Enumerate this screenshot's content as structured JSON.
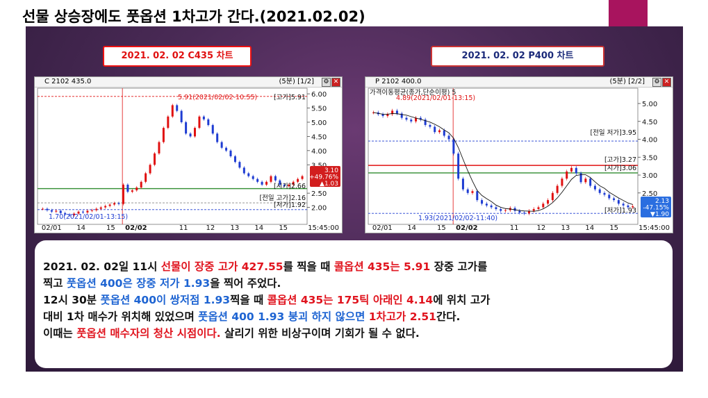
{
  "title": "선물 상승장에도 풋옵션 1차고가 간다.(2021.02.02)",
  "tags": {
    "left": "2021. 02. 02  C435 차트",
    "right": "2021. 02. 02  P400 차트"
  },
  "colors": {
    "accent": "#a8145e",
    "up": "#e01010",
    "down": "#1e3cd2",
    "support": "#2e8b2e"
  },
  "chart_data": [
    {
      "type": "line",
      "header": {
        "name": "C 2102 435.0",
        "timeframe": "(5분)",
        "page": "[1/2]"
      },
      "x_ticks": [
        "02/01",
        "14",
        "15",
        "02/02",
        "11",
        "12",
        "13",
        "14",
        "15",
        "15:45:00"
      ],
      "y_ticks": [
        "6.00",
        "5.50",
        "5.00",
        "4.50",
        "4.00",
        "3.50",
        "2.50",
        "2.00"
      ],
      "ylim": [
        1.5,
        6.1
      ],
      "annotations": {
        "high": "5.91(2021/02/02-10:55)",
        "high_label": "[고가]5.91",
        "low": "1.70(2021/02/01-13:15)",
        "prev_high": "[전일 고가]2.16",
        "low_label": "[저가]1.92",
        "open": "[시가]2.66",
        "last_price": "3.10",
        "change_pct": "+49.76%",
        "change": "▲1.03"
      },
      "levels": {
        "high": 5.91,
        "prev_high": 2.16,
        "low": 1.92,
        "open": 2.66
      },
      "series": [
        {
          "values": [
            1.95,
            1.9,
            1.85,
            1.88,
            1.8,
            1.75,
            1.72,
            1.78,
            1.85,
            1.82,
            1.88,
            1.9,
            1.95,
            2.0,
            2.05,
            2.1,
            2.15,
            2.12,
            2.8,
            2.55,
            2.6,
            2.7,
            2.9,
            3.2,
            3.5,
            3.9,
            4.3,
            4.8,
            5.2,
            5.6,
            5.4,
            5.0,
            4.6,
            4.5,
            4.8,
            5.2,
            5.1,
            4.9,
            4.6,
            4.3,
            4.1,
            4.0,
            3.8,
            3.6,
            3.4,
            3.2,
            3.1,
            3.0,
            2.9,
            2.8,
            2.9,
            3.1,
            2.95,
            2.8,
            2.75,
            2.8,
            2.9,
            3.0,
            3.1
          ]
        }
      ]
    },
    {
      "type": "line",
      "header": {
        "name": "P 2102 400.0",
        "timeframe": "(5분)",
        "page": "[2/2]"
      },
      "legend": "가격이동평균(종가,단순이평) 5",
      "x_ticks": [
        "02/01",
        "14",
        "15",
        "02/02",
        "11",
        "12",
        "13",
        "14",
        "15",
        "15:45:00"
      ],
      "y_ticks": [
        "5.00",
        "4.50",
        "4.00",
        "3.50",
        "3.00",
        "2.50"
      ],
      "ylim": [
        1.7,
        5.35
      ],
      "annotations": {
        "high": "4.89(2021/02/01-13:15)",
        "prev_low": "[전일 저가]3.95",
        "high_label": "[고가]3.27",
        "open": "[시가]3.06",
        "low_label": "[저가]1.93",
        "low": "1.93(2021/02/02-11:40)",
        "last_price": "2.13",
        "change_pct": "-47.15%",
        "change": "▼1.90"
      },
      "levels": {
        "prev_low": 3.95,
        "high": 3.27,
        "open": 3.06,
        "low": 1.93
      },
      "series": [
        {
          "values": [
            4.75,
            4.7,
            4.65,
            4.7,
            4.8,
            4.72,
            4.6,
            4.55,
            4.5,
            4.6,
            4.55,
            4.4,
            4.35,
            4.2,
            4.25,
            4.1,
            4.0,
            3.6,
            2.9,
            2.6,
            2.5,
            2.55,
            2.3,
            2.2,
            2.15,
            2.1,
            2.05,
            2.0,
            2.02,
            2.08,
            2.0,
            1.95,
            1.93,
            2.0,
            2.05,
            2.1,
            2.2,
            2.3,
            2.5,
            2.7,
            2.9,
            3.1,
            3.2,
            3.05,
            2.8,
            2.9,
            2.7,
            2.6,
            2.5,
            2.45,
            2.35,
            2.3,
            2.2,
            2.15,
            2.1,
            2.13
          ]
        }
      ]
    }
  ],
  "note": {
    "lines": [
      [
        {
          "t": "2021. 02. 02일 11시 ",
          "c": "k"
        },
        {
          "t": "선물이 장중 고가 427.55",
          "c": "r"
        },
        {
          "t": "를 찍을 때 ",
          "c": "k"
        },
        {
          "t": "콜옵션 435는 5.91",
          "c": "r"
        },
        {
          "t": " 장중 고가를",
          "c": "k"
        }
      ],
      [
        {
          "t": "찍고 ",
          "c": "k"
        },
        {
          "t": "풋옵션 400은 장중 저가 1.93",
          "c": "b"
        },
        {
          "t": "을 찍어 주었다.",
          "c": "k"
        }
      ],
      [
        {
          "t": "12시 30분 ",
          "c": "k"
        },
        {
          "t": "풋옵션 400이 쌍저점 1.93",
          "c": "b"
        },
        {
          "t": "찍을 때 ",
          "c": "k"
        },
        {
          "t": "콜옵션 435는 175틱 아래인 4.14",
          "c": "r"
        },
        {
          "t": "에 위치 고가",
          "c": "k"
        }
      ],
      [
        {
          "t": "대비 1차 매수가 위치해 있었으며 ",
          "c": "k"
        },
        {
          "t": "풋옵션 400 1.93 붕괴 하지 않으면 ",
          "c": "b"
        },
        {
          "t": "1차고가 2.51",
          "c": "r"
        },
        {
          "t": "간다.",
          "c": "k"
        }
      ],
      [
        {
          "t": "이때는 ",
          "c": "k"
        },
        {
          "t": "풋옵션 매수자의 청산 시점이다.",
          "c": "r"
        },
        {
          "t": " 살리기 위한 비상구이며 기회가 될 수 없다.",
          "c": "k"
        }
      ]
    ]
  }
}
